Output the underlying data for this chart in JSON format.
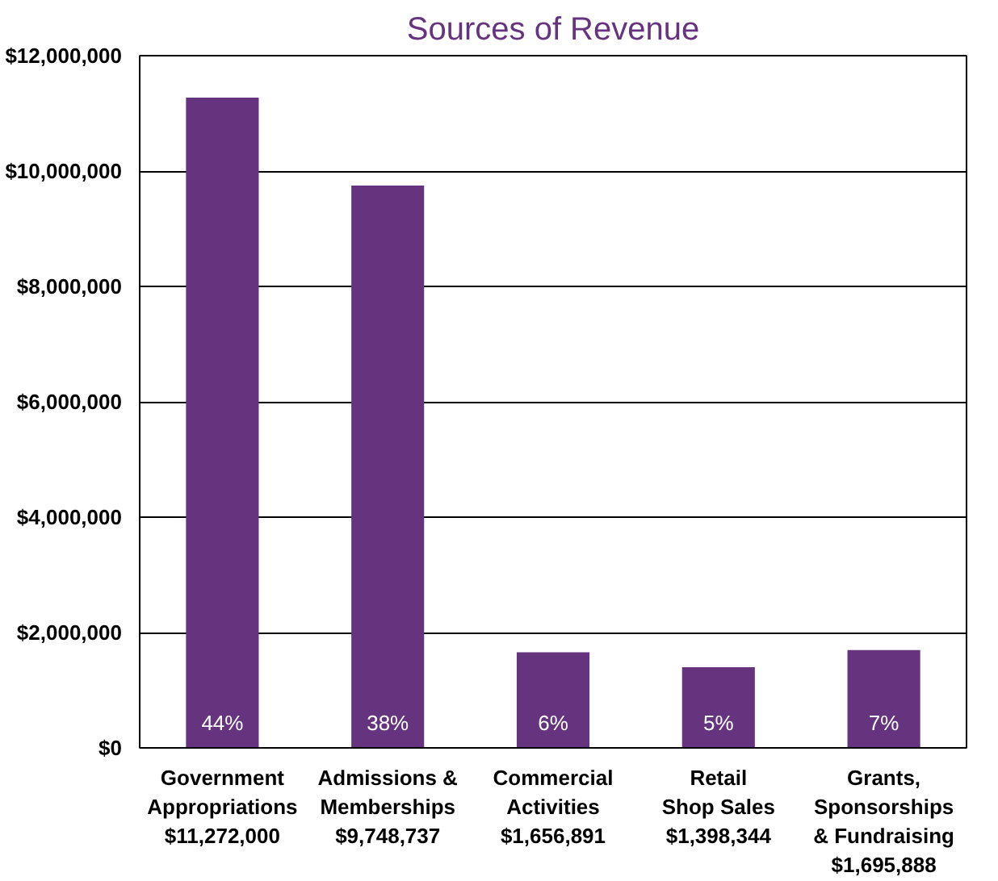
{
  "chart_data": {
    "type": "bar",
    "title": "Sources of Revenue",
    "categories": [
      "Government\nAppropriations\n$11,272,000",
      "Admissions &\nMemberships\n$9,748,737",
      "Commercial\nActivities\n$1,656,891",
      "Retail\nShop Sales\n$1,398,344",
      "Grants,\nSponsorships\n& Fundraising\n$1,695,888"
    ],
    "values": [
      11272000,
      9748737,
      1656891,
      1398344,
      1695888
    ],
    "annotations": [
      {
        "text": "44%",
        "x": "Government\nAppropriations\n$11,272,000",
        "y": 0
      },
      {
        "text": "38%",
        "x": "Admissions &\nMemberships\n$9,748,737",
        "y": 0
      },
      {
        "text": "6%",
        "x": "Commercial\nActivities\n$1,656,891",
        "y": 0
      },
      {
        "text": "5%",
        "x": "Retail\nShop Sales\n$1,398,344",
        "y": 0
      },
      {
        "text": "7%",
        "x": "Grants,\nSponsorships\n& Fundraising\n$1,695,888",
        "y": 0
      }
    ],
    "color": "#66347f",
    "ylim": [
      0,
      12000000
    ],
    "yticks": [
      {
        "value": 0,
        "label": "$0"
      },
      {
        "value": 2000000,
        "label": "$2,000,000"
      },
      {
        "value": 4000000,
        "label": "$4,000,000"
      },
      {
        "value": 6000000,
        "label": "$6,000,000"
      },
      {
        "value": 8000000,
        "label": "$8,000,000"
      },
      {
        "value": 10000000,
        "label": "$10,000,000"
      },
      {
        "value": 12000000,
        "label": "$12,000,000"
      }
    ],
    "grid": "y"
  }
}
